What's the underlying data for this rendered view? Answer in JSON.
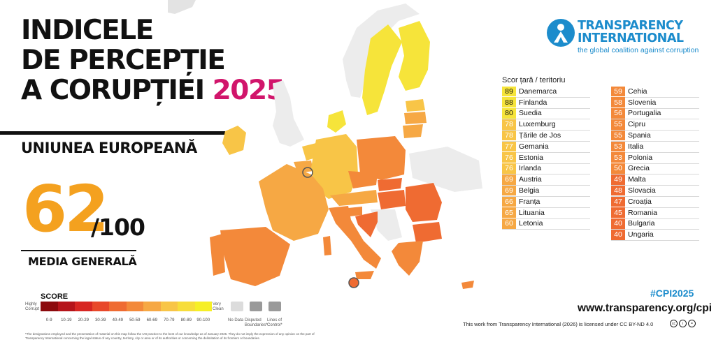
{
  "title": {
    "line1": "INDICELE",
    "line2": "DE PERCEPȚIE",
    "line3": "A CORUPȚIEI",
    "year": "2025"
  },
  "region": "UNIUNEA EUROPEANĂ",
  "average": {
    "score": "62",
    "out_of": "/100",
    "label": "MEDIA GENERALĂ"
  },
  "legend": {
    "title": "SCORE",
    "highly_corrupt": "Highly Corrupt",
    "very_clean": "Very Clean",
    "ranges": [
      "0-9",
      "10-19",
      "20-29",
      "30-39",
      "40-49",
      "50-59",
      "60-69",
      "70-79",
      "80-89",
      "90-100"
    ],
    "colors": [
      "#8c0a0d",
      "#b5141a",
      "#d72622",
      "#e8482a",
      "#ef6b32",
      "#f3893a",
      "#f6a844",
      "#f8c547",
      "#f7dd3a",
      "#f6ef26"
    ],
    "no_data": "No Data",
    "disputed": "Disputed Boundaries*",
    "lines_of_control": "Lines of Control*",
    "footnote": "*The designations employed and the presentation of material on this map follow the UN practice to the best of our knowledge as of January 2026. They do not imply the expression of any opinion on the part of Transparency International concerning the legal status of any country, territory, city or area or of its authorities or concerning the delimitation of its frontiers or boundaries."
  },
  "logo": {
    "name_line1": "TRANSPARENCY",
    "name_line2": "INTERNATIONAL",
    "tagline": "the global coalition against corruption"
  },
  "table": {
    "header": "Scor țară / teritoriu",
    "left": [
      {
        "score": "89",
        "country": "Danemarca",
        "color": "#f6e43a"
      },
      {
        "score": "88",
        "country": "Finlanda",
        "color": "#f6e43a"
      },
      {
        "score": "80",
        "country": "Suedia",
        "color": "#f6e43a"
      },
      {
        "score": "78",
        "country": "Luxemburg",
        "color": "#f8c547"
      },
      {
        "score": "78",
        "country": "Țările de Jos",
        "color": "#f8c547"
      },
      {
        "score": "77",
        "country": "Gemania",
        "color": "#f8c547"
      },
      {
        "score": "76",
        "country": "Estonia",
        "color": "#f8c547"
      },
      {
        "score": "76",
        "country": "Irlanda",
        "color": "#f8c547"
      },
      {
        "score": "69",
        "country": "Austria",
        "color": "#f6a844"
      },
      {
        "score": "69",
        "country": "Belgia",
        "color": "#f6a844"
      },
      {
        "score": "66",
        "country": "Franța",
        "color": "#f6a844"
      },
      {
        "score": "65",
        "country": "Lituania",
        "color": "#f6a844"
      },
      {
        "score": "60",
        "country": "Letonia",
        "color": "#f6a844"
      }
    ],
    "right": [
      {
        "score": "59",
        "country": "Cehia",
        "color": "#f3893a"
      },
      {
        "score": "58",
        "country": "Slovenia",
        "color": "#f3893a"
      },
      {
        "score": "56",
        "country": "Portugalia",
        "color": "#f3893a"
      },
      {
        "score": "55",
        "country": "Cipru",
        "color": "#f3893a"
      },
      {
        "score": "55",
        "country": "Spania",
        "color": "#f3893a"
      },
      {
        "score": "53",
        "country": "Italia",
        "color": "#f3893a"
      },
      {
        "score": "53",
        "country": "Polonia",
        "color": "#f3893a"
      },
      {
        "score": "50",
        "country": "Grecia",
        "color": "#f3893a"
      },
      {
        "score": "49",
        "country": "Malta",
        "color": "#ef6b32"
      },
      {
        "score": "48",
        "country": "Slovacia",
        "color": "#ef6b32"
      },
      {
        "score": "47",
        "country": "Croația",
        "color": "#ef6b32"
      },
      {
        "score": "45",
        "country": "Romania",
        "color": "#ef6b32"
      },
      {
        "score": "40",
        "country": "Bulgaria",
        "color": "#ef6b32"
      },
      {
        "score": "40",
        "country": "Ungaria",
        "color": "#ef6b32"
      }
    ]
  },
  "footer": {
    "hashtag": "#CPI2025",
    "url": "www.transparency.org/cpi",
    "license": "This work from Transparency International (2026) is licensed under CC BY-ND 4.0"
  }
}
